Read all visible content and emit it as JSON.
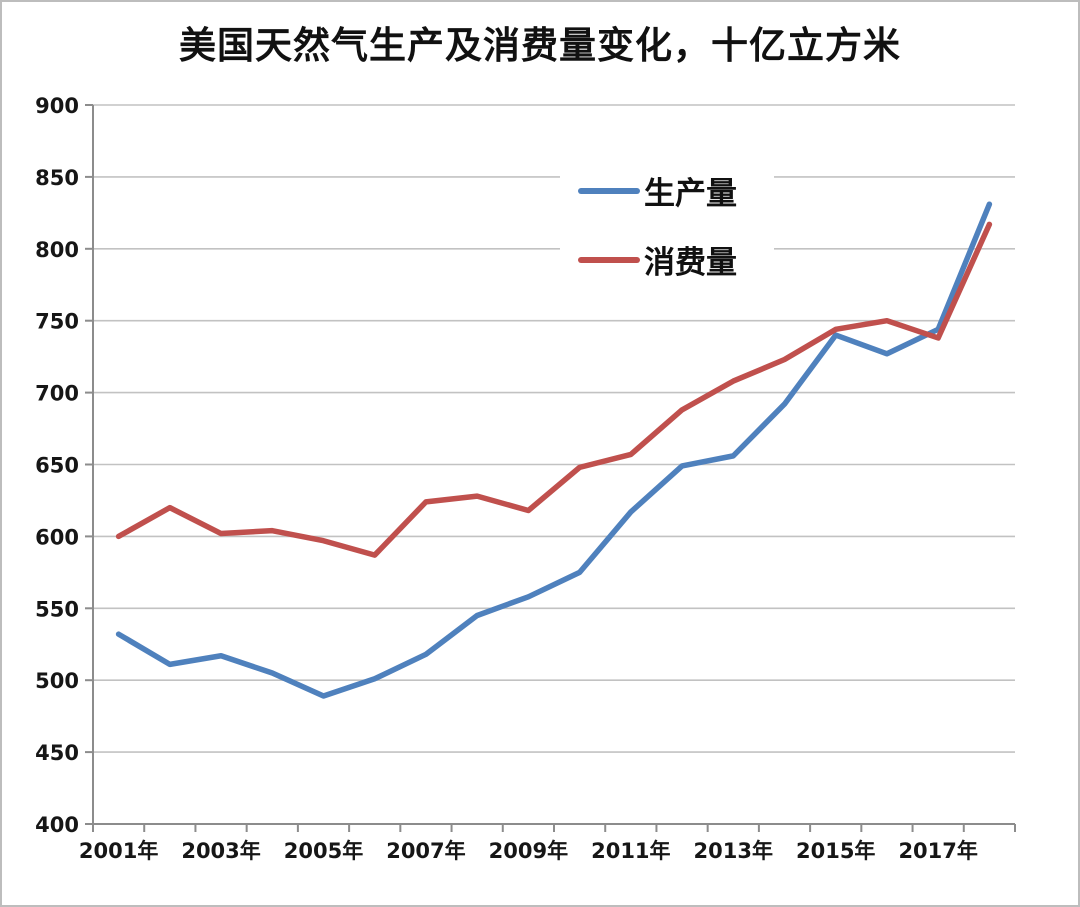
{
  "page": {
    "background": "#ffffff",
    "border_color": "#bdbdbd"
  },
  "chart_data": {
    "type": "line",
    "title": "美国天然气生产及消费量变化，十亿立方米",
    "x_years": [
      2001,
      2002,
      2003,
      2004,
      2005,
      2006,
      2007,
      2008,
      2009,
      2010,
      2011,
      2012,
      2013,
      2014,
      2015,
      2016,
      2017,
      2018
    ],
    "series": [
      {
        "name": "生产量",
        "color": "#4F81BD",
        "values": [
          532,
          511,
          517,
          505,
          489,
          501,
          518,
          545,
          558,
          575,
          617,
          649,
          656,
          692,
          740,
          727,
          744,
          831
        ]
      },
      {
        "name": "消费量",
        "color": "#C0504D",
        "values": [
          600,
          620,
          602,
          604,
          597,
          587,
          624,
          628,
          618,
          648,
          657,
          688,
          708,
          723,
          744,
          750,
          738,
          817
        ]
      }
    ],
    "y_axis": {
      "min": 400,
      "max": 900,
      "tick_step": 50,
      "tick_labels": [
        "900",
        "850",
        "800",
        "750",
        "700",
        "650",
        "600",
        "550",
        "500",
        "450",
        "400"
      ]
    },
    "x_axis": {
      "tick_labels": [
        "2001年",
        "2003年",
        "2005年",
        "2007年",
        "2009年",
        "2011年",
        "2013年",
        "2015年",
        "2017年"
      ],
      "label_indices": [
        0,
        2,
        4,
        6,
        8,
        10,
        12,
        14,
        16
      ]
    },
    "grid": "horizontal",
    "grid_color": "#c2c2c2",
    "axis_color": "#8c8c8c",
    "legend_position": "inside-top-center"
  },
  "legend": {
    "items": [
      {
        "label": "生产量",
        "color": "#4F81BD"
      },
      {
        "label": "消费量",
        "color": "#C0504D"
      }
    ]
  }
}
